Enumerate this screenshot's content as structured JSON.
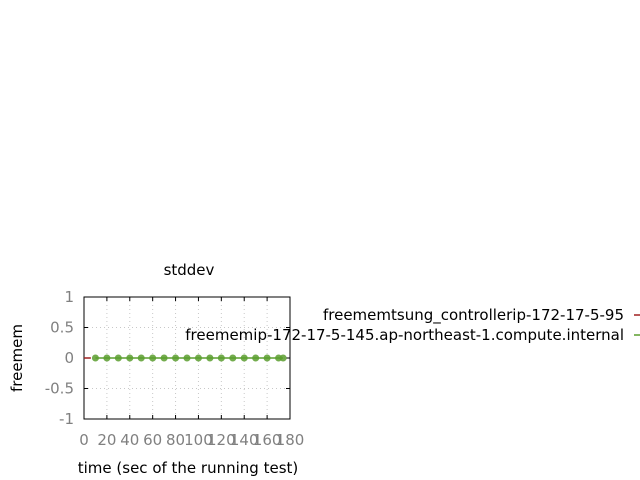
{
  "chart_data": {
    "type": "line",
    "title": "stddev",
    "xlabel": "time (sec of the running test)",
    "ylabel": "freemem",
    "xlim": [
      0,
      180
    ],
    "ylim": [
      -1,
      1
    ],
    "xticks": [
      "0",
      "20",
      "40",
      "60",
      "80",
      "100",
      "120",
      "140",
      "160",
      "180"
    ],
    "yticks": [
      "1",
      "0.5",
      "0",
      "-0.5",
      "-1"
    ],
    "grid": true,
    "legend_position": "outside-right",
    "series": [
      {
        "name": "freememtsung_controllerip-172-17-5-95",
        "color": "#a02020",
        "marker": false,
        "x": [
          0,
          6
        ],
        "y": [
          0,
          0
        ]
      },
      {
        "name": "freememip-172-17-5-145.ap-northeast-1.compute.internal",
        "color": "#5a9e2e",
        "marker": true,
        "x": [
          10,
          20,
          30,
          40,
          50,
          60,
          70,
          80,
          90,
          100,
          110,
          120,
          130,
          140,
          150,
          160,
          170,
          174
        ],
        "y": [
          0,
          0,
          0,
          0,
          0,
          0,
          0,
          0,
          0,
          0,
          0,
          0,
          0,
          0,
          0,
          0,
          0,
          0
        ]
      }
    ]
  }
}
